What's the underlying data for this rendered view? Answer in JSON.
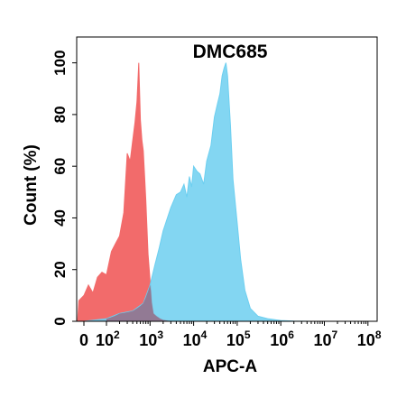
{
  "chart_data": {
    "type": "area",
    "title": "DMC685",
    "xlabel": "APC-A",
    "ylabel": "Count  (%)",
    "x_scale": "biexponential",
    "xlim": [
      -50,
      100000000
    ],
    "ylim": [
      0,
      110
    ],
    "x_tick_labels": [
      {
        "value": 0,
        "base": "0",
        "exp": ""
      },
      {
        "value": 100,
        "base": "10",
        "exp": "2"
      },
      {
        "value": 1000,
        "base": "10",
        "exp": "3"
      },
      {
        "value": 10000,
        "base": "10",
        "exp": "4"
      },
      {
        "value": 100000,
        "base": "10",
        "exp": "5"
      },
      {
        "value": 1000000,
        "base": "10",
        "exp": "6"
      },
      {
        "value": 10000000,
        "base": "10",
        "exp": "7"
      },
      {
        "value": 100000000,
        "base": "10",
        "exp": "8"
      }
    ],
    "y_ticks": [
      0,
      20,
      40,
      60,
      80,
      100
    ],
    "grid": false,
    "legend": "none",
    "series": [
      {
        "color": "#f26b6b",
        "x": [
          -50,
          -40,
          0,
          20,
          40,
          60,
          80,
          100,
          130,
          160,
          200,
          250,
          300,
          350,
          400,
          450,
          500,
          550,
          600,
          650,
          700,
          750,
          800,
          900,
          1000,
          1100,
          1200,
          1400,
          1700,
          2000,
          3000
        ],
        "values": [
          0,
          8,
          10,
          14,
          11,
          17,
          19,
          18,
          27,
          30,
          33,
          42,
          65,
          62,
          70,
          77,
          85,
          100,
          78,
          70,
          66,
          56,
          47,
          26,
          16,
          7,
          3,
          2,
          1,
          0.5,
          0
        ]
      },
      {
        "color": "#6dcff0",
        "x": [
          -50,
          0,
          100,
          200,
          400,
          700,
          1000,
          1300,
          1600,
          2000,
          2500,
          3000,
          4000,
          5000,
          6000,
          7000,
          8000,
          9000,
          10000,
          12000,
          14000,
          17000,
          20000,
          25000,
          30000,
          35000,
          40000,
          45000,
          50000,
          55000,
          60000,
          70000,
          80000,
          100000,
          120000,
          150000,
          200000,
          300000,
          500000,
          1000000,
          2000000,
          5000000,
          10000000,
          100000000
        ],
        "values": [
          0,
          0,
          1,
          3,
          4,
          7,
          14,
          22,
          28,
          35,
          40,
          44,
          49,
          50,
          53,
          48,
          56,
          52,
          60,
          58,
          57,
          53,
          62,
          68,
          79,
          84,
          88,
          95,
          98,
          100,
          95,
          76,
          55,
          38,
          24,
          12,
          5,
          2,
          1,
          0.3,
          0.1,
          0,
          0,
          0
        ]
      }
    ]
  }
}
